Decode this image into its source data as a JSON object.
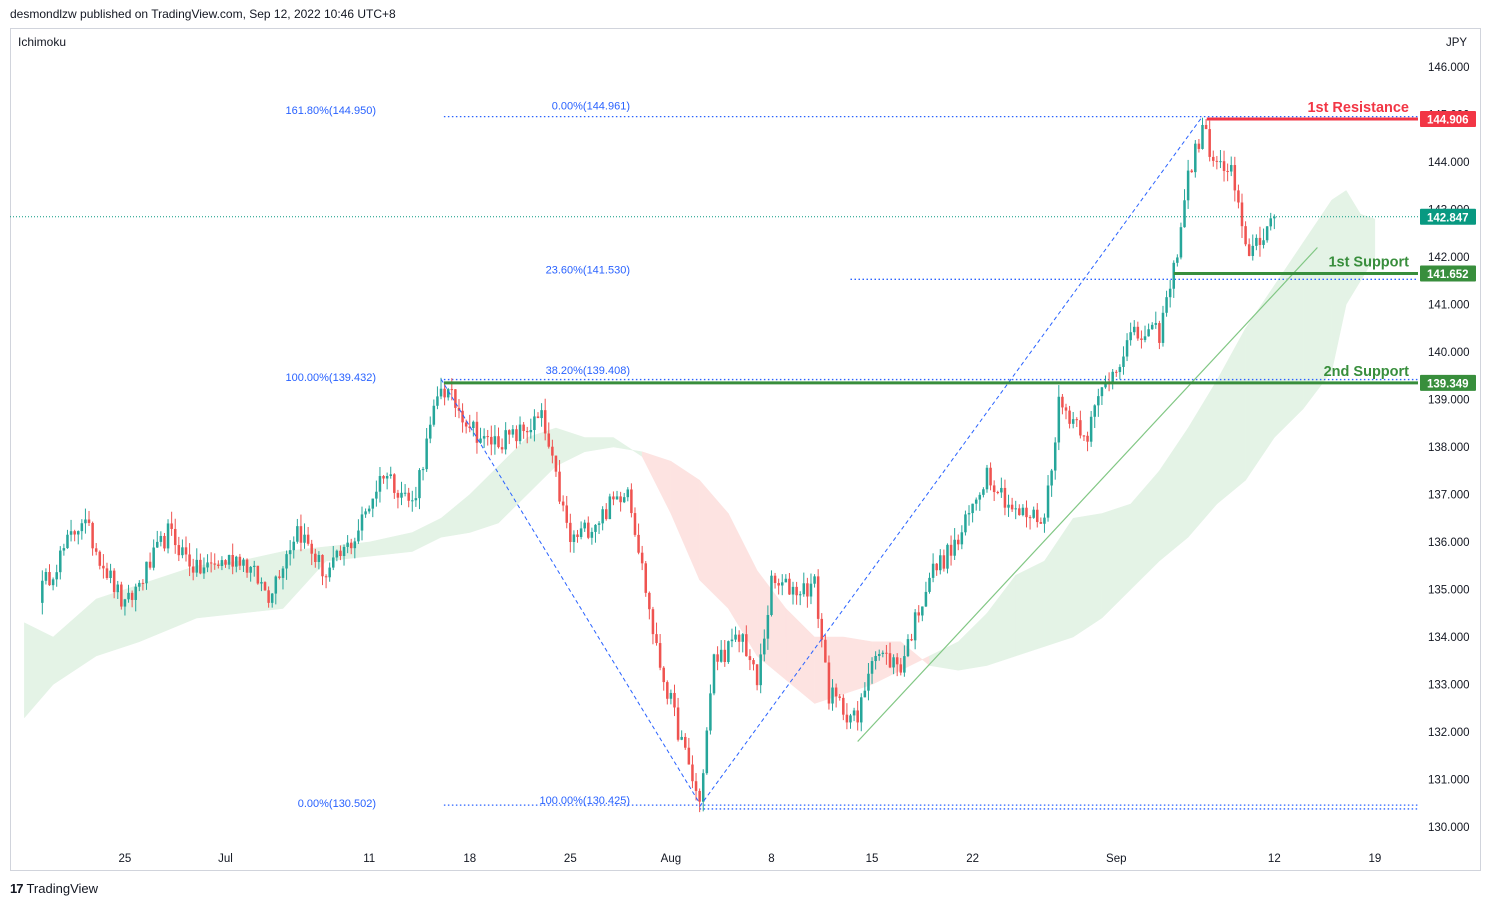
{
  "header": {
    "published_by": "desmondlzw published on TradingView.com, Sep 12, 2022 10:46 UTC+8"
  },
  "indicator": {
    "label": "Ichimoku"
  },
  "footer": {
    "brand": "TradingView",
    "logo_glyph": "17"
  },
  "colors": {
    "bull": "#26a69a",
    "bear": "#ef5350",
    "resistance": "#f23645",
    "support": "#388e3c",
    "fib": "#2962ff",
    "price": "#089981",
    "cloud_green": "#e4f3e6",
    "cloud_red": "#fde3e1"
  },
  "chart_data": {
    "type": "candlestick",
    "currency": "JPY",
    "ylim": [
      129.6,
      146.8
    ],
    "y_ticks": [
      "146.000",
      "145.000",
      "144.000",
      "143.000",
      "142.000",
      "141.000",
      "140.000",
      "139.000",
      "138.000",
      "137.000",
      "136.000",
      "135.000",
      "134.000",
      "133.000",
      "132.000",
      "131.000",
      "130.000"
    ],
    "x_ticks": [
      {
        "label": "25",
        "day": -7
      },
      {
        "label": "Jul",
        "day": 0
      },
      {
        "label": "11",
        "day": 10
      },
      {
        "label": "18",
        "day": 17
      },
      {
        "label": "25",
        "day": 24
      },
      {
        "label": "Aug",
        "day": 31
      },
      {
        "label": "8",
        "day": 38
      },
      {
        "label": "15",
        "day": 45
      },
      {
        "label": "22",
        "day": 52
      },
      {
        "label": "Sep",
        "day": 62
      },
      {
        "label": "12",
        "day": 73
      },
      {
        "label": "19",
        "day": 80
      }
    ],
    "levels": [
      {
        "id": "resistance-1",
        "name": "1st Resistance",
        "value": "144.906",
        "y": 144.906,
        "color": "#f23645"
      },
      {
        "id": "support-1",
        "name": "1st Support",
        "value": "141.652",
        "y": 141.652,
        "color": "#388e3c"
      },
      {
        "id": "support-2",
        "name": "2nd Support",
        "value": "139.349",
        "y": 139.349,
        "color": "#388e3c"
      }
    ],
    "current_price": {
      "value": "142.847",
      "y": 142.847
    },
    "fib_labels": [
      {
        "text": "161.80%(144.950)",
        "y": 144.95
      },
      {
        "text": "0.00%(144.961)",
        "y": 144.961
      },
      {
        "text": "23.60%(141.530)",
        "y": 141.53
      },
      {
        "text": "100.00%(139.432)",
        "y": 139.432
      },
      {
        "text": "38.20%(139.408)",
        "y": 139.408
      },
      {
        "text": "0.00%(130.502)",
        "y": 130.502
      },
      {
        "text": "100.00%(130.425)",
        "y": 130.425
      }
    ],
    "anchors": [
      {
        "day": -13,
        "close": 134.9
      },
      {
        "day": -10,
        "close": 136.5
      },
      {
        "day": -7,
        "close": 134.6
      },
      {
        "day": -4,
        "close": 136.2
      },
      {
        "day": -2,
        "close": 135.4
      },
      {
        "day": 1,
        "close": 135.7
      },
      {
        "day": 3,
        "close": 134.9
      },
      {
        "day": 5,
        "close": 136.3
      },
      {
        "day": 7,
        "close": 135.3
      },
      {
        "day": 9,
        "close": 136.1
      },
      {
        "day": 11,
        "close": 137.5
      },
      {
        "day": 13,
        "close": 136.8
      },
      {
        "day": 15,
        "close": 139.3
      },
      {
        "day": 18,
        "close": 138.1
      },
      {
        "day": 20,
        "close": 138.2
      },
      {
        "day": 22,
        "close": 138.6
      },
      {
        "day": 24,
        "close": 136.0
      },
      {
        "day": 26,
        "close": 136.5
      },
      {
        "day": 28,
        "close": 137.2
      },
      {
        "day": 30,
        "close": 133.7
      },
      {
        "day": 32,
        "close": 131.5
      },
      {
        "day": 33,
        "close": 130.5
      },
      {
        "day": 34,
        "close": 133.5
      },
      {
        "day": 36,
        "close": 134.0
      },
      {
        "day": 37,
        "close": 133.0
      },
      {
        "day": 38,
        "close": 135.1
      },
      {
        "day": 40,
        "close": 135.0
      },
      {
        "day": 41,
        "close": 135.1
      },
      {
        "day": 42,
        "close": 132.8
      },
      {
        "day": 44,
        "close": 132.2
      },
      {
        "day": 45,
        "close": 133.7
      },
      {
        "day": 47,
        "close": 133.4
      },
      {
        "day": 49,
        "close": 135.3
      },
      {
        "day": 51,
        "close": 136.0
      },
      {
        "day": 53,
        "close": 137.5
      },
      {
        "day": 55,
        "close": 136.6
      },
      {
        "day": 57,
        "close": 136.5
      },
      {
        "day": 58,
        "close": 138.9
      },
      {
        "day": 60,
        "close": 138.3
      },
      {
        "day": 61,
        "close": 139.2
      },
      {
        "day": 63,
        "close": 140.3
      },
      {
        "day": 65,
        "close": 140.4
      },
      {
        "day": 66,
        "close": 141.7
      },
      {
        "day": 67,
        "close": 143.7
      },
      {
        "day": 68,
        "close": 144.7
      },
      {
        "day": 69,
        "close": 143.9
      },
      {
        "day": 70,
        "close": 143.8
      },
      {
        "day": 71,
        "close": 142.1
      },
      {
        "day": 72,
        "close": 142.4
      },
      {
        "day": 73,
        "close": 142.85
      }
    ],
    "cloud": [
      {
        "day": -14,
        "a": 134.3,
        "b": 132.3
      },
      {
        "day": -12,
        "a": 134.0,
        "b": 133.0
      },
      {
        "day": -9,
        "a": 134.8,
        "b": 133.6
      },
      {
        "day": -6,
        "a": 135.1,
        "b": 133.9
      },
      {
        "day": -2,
        "a": 135.5,
        "b": 134.4
      },
      {
        "day": 1,
        "a": 135.6,
        "b": 134.5
      },
      {
        "day": 4,
        "a": 135.8,
        "b": 134.6
      },
      {
        "day": 7,
        "a": 135.9,
        "b": 135.6
      },
      {
        "day": 10,
        "a": 136.0,
        "b": 135.7
      },
      {
        "day": 13,
        "a": 136.2,
        "b": 135.8
      },
      {
        "day": 15,
        "a": 136.5,
        "b": 136.1
      },
      {
        "day": 17,
        "a": 137.0,
        "b": 136.2
      },
      {
        "day": 19,
        "a": 137.6,
        "b": 136.4
      },
      {
        "day": 21,
        "a": 138.2,
        "b": 137.0
      },
      {
        "day": 23,
        "a": 138.4,
        "b": 137.6
      },
      {
        "day": 25,
        "a": 138.2,
        "b": 137.9
      },
      {
        "day": 27,
        "a": 138.2,
        "b": 138.0
      },
      {
        "day": 29,
        "a": 137.8,
        "b": 137.9
      },
      {
        "day": 31,
        "a": 136.6,
        "b": 137.7
      },
      {
        "day": 33,
        "a": 135.2,
        "b": 137.3
      },
      {
        "day": 35,
        "a": 134.6,
        "b": 136.6
      },
      {
        "day": 37,
        "a": 133.6,
        "b": 135.4
      },
      {
        "day": 39,
        "a": 133.1,
        "b": 134.6
      },
      {
        "day": 41,
        "a": 132.6,
        "b": 134.0
      },
      {
        "day": 43,
        "a": 132.8,
        "b": 134.0
      },
      {
        "day": 45,
        "a": 133.0,
        "b": 133.9
      },
      {
        "day": 47,
        "a": 133.3,
        "b": 133.9
      },
      {
        "day": 49,
        "a": 133.6,
        "b": 133.4
      },
      {
        "day": 51,
        "a": 133.9,
        "b": 133.3
      },
      {
        "day": 53,
        "a": 134.5,
        "b": 133.4
      },
      {
        "day": 55,
        "a": 135.3,
        "b": 133.6
      },
      {
        "day": 57,
        "a": 135.6,
        "b": 133.8
      },
      {
        "day": 59,
        "a": 136.5,
        "b": 134.0
      },
      {
        "day": 61,
        "a": 136.6,
        "b": 134.4
      },
      {
        "day": 63,
        "a": 136.8,
        "b": 135.0
      },
      {
        "day": 65,
        "a": 137.5,
        "b": 135.6
      },
      {
        "day": 67,
        "a": 138.4,
        "b": 136.1
      },
      {
        "day": 69,
        "a": 139.4,
        "b": 136.8
      },
      {
        "day": 71,
        "a": 140.5,
        "b": 137.3
      },
      {
        "day": 73,
        "a": 141.4,
        "b": 138.2
      },
      {
        "day": 75,
        "a": 142.3,
        "b": 138.8
      },
      {
        "day": 77,
        "a": 143.2,
        "b": 139.6
      },
      {
        "day": 78,
        "a": 143.4,
        "b": 141.0
      },
      {
        "day": 79,
        "a": 142.9,
        "b": 141.5
      },
      {
        "day": 80,
        "a": 142.8,
        "b": 142.0
      }
    ],
    "fib_lines": [
      {
        "id": "fib-left-leg-1",
        "from": {
          "day": 15,
          "y": 139.43
        },
        "to": {
          "day": 33,
          "y": 130.5
        }
      },
      {
        "id": "fib-left-leg-2",
        "from": {
          "day": 33,
          "y": 130.43
        },
        "to": {
          "day": 68,
          "y": 144.96
        }
      }
    ],
    "trendline": {
      "from": {
        "day": 44,
        "y": 131.8
      },
      "to": {
        "day": 76,
        "y": 142.2
      }
    }
  }
}
